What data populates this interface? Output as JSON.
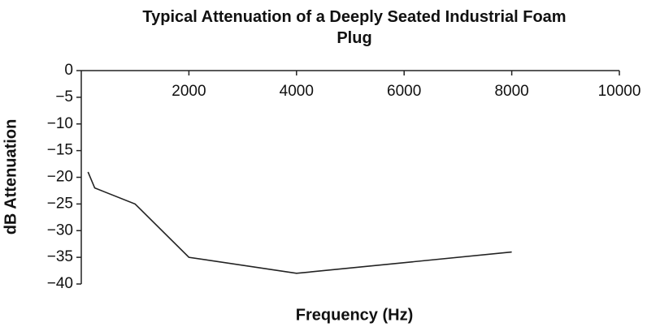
{
  "chart_data": {
    "type": "line",
    "title": "Typical Attenuation of a Deeply Seated Industrial Foam Plug",
    "x_label": "Frequency (Hz)",
    "y_label": "dB Attenuation",
    "x": [
      125,
      250,
      1000,
      2000,
      4000,
      8000
    ],
    "series": [
      {
        "name": "Attenuation",
        "color": "#222222",
        "values": [
          -19,
          -22,
          -25,
          -35,
          -38,
          -34
        ]
      }
    ],
    "xlim": [
      0,
      10000
    ],
    "xticks": [
      2000,
      4000,
      6000,
      8000,
      10000
    ],
    "ylim": [
      -40,
      0
    ],
    "yticks": [
      0,
      {
        "value": -5,
        "label": "−5"
      },
      {
        "value": -10,
        "label": "−10"
      },
      {
        "value": -15,
        "label": "−15"
      },
      {
        "value": -20,
        "label": "−20"
      },
      {
        "value": -25,
        "label": "−25"
      },
      {
        "value": -30,
        "label": "−30"
      },
      {
        "value": -35,
        "label": "−35"
      },
      {
        "value": -40,
        "label": "−40"
      }
    ],
    "grid": false
  }
}
